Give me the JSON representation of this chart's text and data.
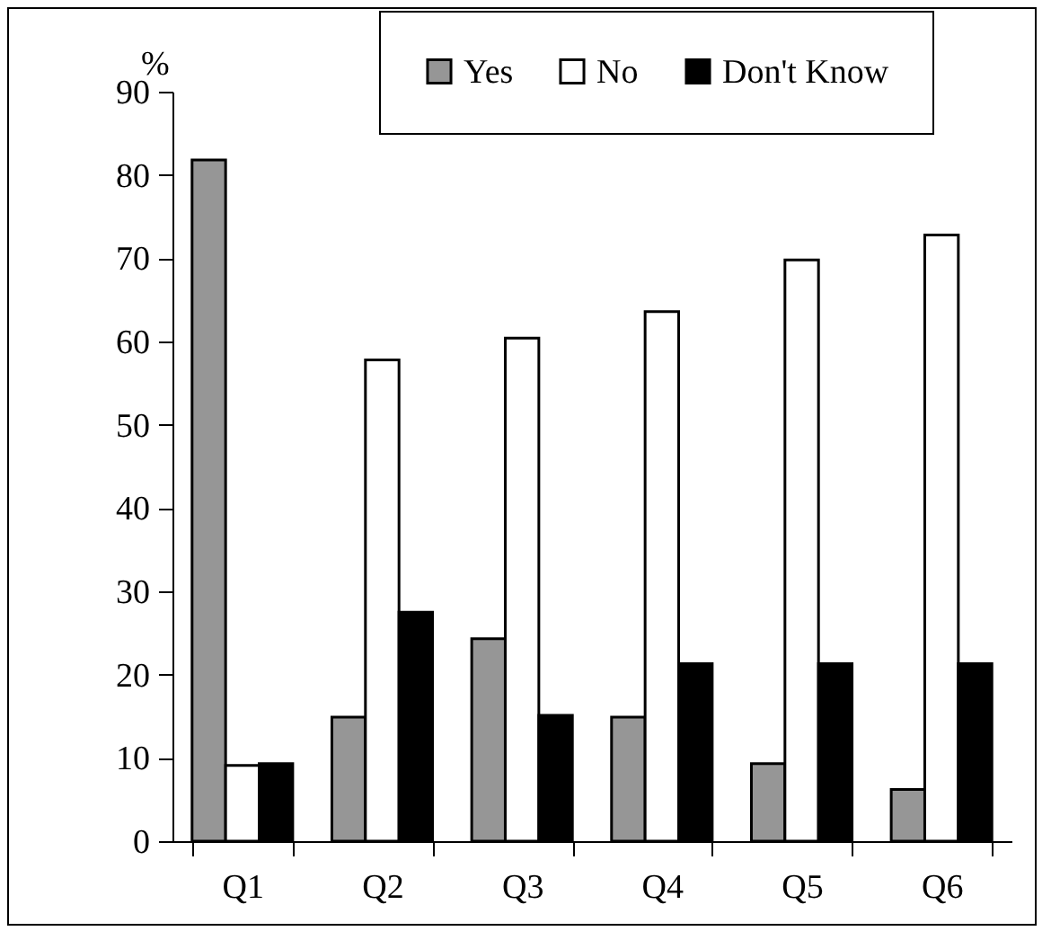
{
  "chart_data": {
    "type": "bar",
    "ylabel": "%",
    "categories": [
      "Q1",
      "Q2",
      "Q3",
      "Q4",
      "Q5",
      "Q6"
    ],
    "series": [
      {
        "name": "Yes",
        "color": "#969696",
        "values": [
          81.8,
          14.9,
          24.3,
          14.9,
          9.3,
          6.2
        ]
      },
      {
        "name": "No",
        "color": "#ffffff",
        "values": [
          9.1,
          57.8,
          60.4,
          63.6,
          69.8,
          72.8
        ]
      },
      {
        "name": "Don't Know",
        "color": "#000000",
        "values": [
          9.3,
          27.5,
          15.1,
          21.3,
          21.3,
          21.3
        ]
      }
    ],
    "ylim": [
      0,
      90
    ],
    "yticks": [
      0,
      10,
      20,
      30,
      40,
      50,
      60,
      70,
      80,
      90
    ],
    "grid": false,
    "legend": "top right"
  }
}
